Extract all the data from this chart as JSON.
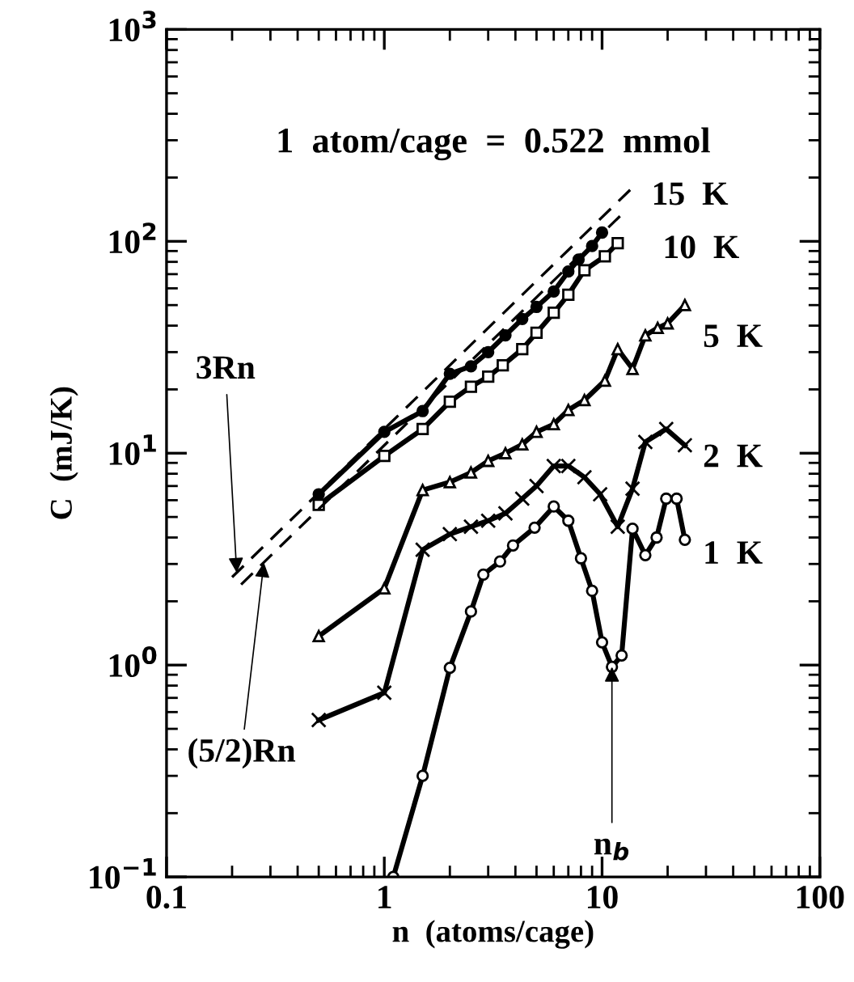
{
  "chart_data": {
    "type": "line",
    "xlabel": "n  (atoms/cage)",
    "ylabel": "C  (mJ/K)",
    "log": "xy",
    "xlim": [
      0.1,
      100
    ],
    "ylim": [
      0.1,
      1000
    ],
    "xticks": [
      0.1,
      1,
      10,
      100
    ],
    "yticks": [
      {
        "value": 0.1,
        "label": "10$^{−1}$"
      },
      {
        "value": 1,
        "label": "10$^{0}$"
      },
      {
        "value": 10,
        "label": "10$^{1}$"
      },
      {
        "value": 100,
        "label": "10$^{2}$"
      },
      {
        "value": 1000,
        "label": "10$^{3}$"
      }
    ],
    "grid": false,
    "line_style": "solid",
    "series": [
      {
        "color": "#000000",
        "marker": "circle",
        "x": [
          0.5,
          1.0,
          1.5,
          2.0,
          2.5,
          3.0,
          3.6,
          4.3,
          5.0,
          6.0,
          7.0,
          7.8,
          9.0,
          10
        ],
        "values": [
          6.4,
          12.6,
          15.8,
          23.7,
          25.7,
          30,
          36,
          43,
          49,
          58,
          72,
          82,
          95,
          110
        ]
      },
      {
        "color": "#000000",
        "marker": "square",
        "x": [
          0.5,
          1.0,
          1.5,
          2.0,
          2.5,
          3.0,
          3.5,
          4.3,
          5.0,
          6.0,
          7.0,
          8.3,
          10.3,
          11.8
        ],
        "values": [
          5.7,
          9.7,
          13,
          17.5,
          20.6,
          23,
          26,
          31,
          37,
          46,
          56,
          73,
          85,
          98
        ]
      },
      {
        "color": "#000000",
        "marker": "triangle",
        "x": [
          0.5,
          1.0,
          1.5,
          2.0,
          2.5,
          3.0,
          3.6,
          4.3,
          5.0,
          6.0,
          7.0,
          8.3,
          10.3,
          11.8,
          13.8,
          15.8,
          18,
          20,
          24
        ],
        "values": [
          1.37,
          2.3,
          6.7,
          7.3,
          8.1,
          9.2,
          10,
          11,
          12.6,
          13.7,
          16,
          17.8,
          22,
          31,
          25,
          36,
          39,
          41,
          50
        ]
      },
      {
        "color": "#000000",
        "marker": "cross",
        "x": [
          0.5,
          1.0,
          1.5,
          2.0,
          2.5,
          3.0,
          3.6,
          4.3,
          5.0,
          6.0,
          7.0,
          8.3,
          9.8,
          11.8,
          13.8,
          15.8,
          19.7,
          24
        ],
        "values": [
          0.55,
          0.74,
          3.5,
          4.15,
          4.5,
          4.8,
          5.2,
          6.1,
          7.0,
          8.7,
          8.7,
          7.7,
          6.4,
          4.5,
          6.8,
          11.3,
          13,
          10.9
        ]
      },
      {
        "color": "#000000",
        "marker": "circle",
        "x": [
          1.1,
          1.5,
          2.0,
          2.5,
          2.85,
          3.4,
          3.9,
          4.9,
          6.0,
          7.0,
          8.0,
          9.0,
          10,
          11.1,
          12.3,
          13.8,
          15.8,
          17.8,
          19.7,
          22,
          24
        ],
        "values": [
          0.1,
          0.3,
          0.97,
          1.79,
          2.67,
          3.08,
          3.67,
          4.45,
          5.6,
          4.8,
          3.19,
          2.24,
          1.28,
          0.98,
          1.11,
          4.4,
          3.3,
          4.0,
          6.1,
          6.1,
          3.9
        ]
      },
      {
        "color": "#000000",
        "marker": "none",
        "line_style": "dashed",
        "x": [
          0.2,
          14
        ],
        "values": [
          2.6,
          182
        ]
      },
      {
        "color": "#000000",
        "marker": "none",
        "line_style": "dashed",
        "x": [
          0.22,
          12.5
        ],
        "values": [
          2.4,
          136
        ]
      }
    ],
    "annotations": [
      "1  atom/cage  =  0.522  mmol",
      {
        "text": "15  K",
        "x": 10,
        "y": 110
      },
      {
        "text": "10  K",
        "x": 11.8,
        "y": 98
      },
      {
        "text": "5  K",
        "x": 24,
        "y": 50
      },
      {
        "text": "2  K",
        "x": 24,
        "y": 10.9
      },
      {
        "text": "1  K",
        "x": 24,
        "y": 3.9
      },
      {
        "text": "3Rn",
        "x": 0.21,
        "y": 2.73
      },
      {
        "text": "(5/2)Rn",
        "x": 0.28,
        "y": 3.05
      },
      {
        "text": "n$_{b}$",
        "x": 11.1,
        "y": 0.98
      }
    ]
  }
}
